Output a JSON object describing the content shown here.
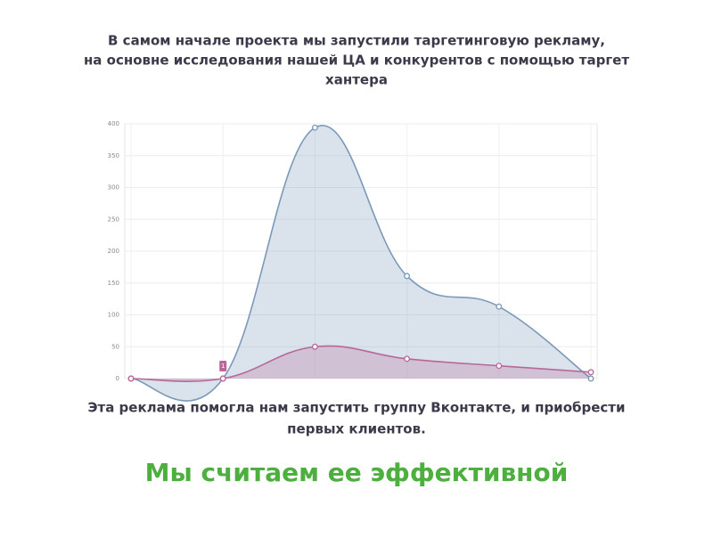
{
  "heading_lines": [
    "В самом начале проекта мы запустили таргетинговую рекламу,",
    "на основне исследования нашей ЦА и конкурентов с помощью таргет",
    "хантера"
  ],
  "chart_data": {
    "type": "area",
    "categories": [
      null,
      null,
      null,
      null,
      null,
      null
    ],
    "series": [
      {
        "color": "#7b99b9",
        "values": [
          0,
          0,
          394,
          161,
          113,
          0
        ]
      },
      {
        "color": "#b8679a",
        "values": [
          0,
          0,
          50,
          31,
          20,
          10
        ]
      }
    ],
    "ylim": [
      0,
      400
    ],
    "yticks": [
      0,
      50,
      100,
      150,
      200,
      250,
      300,
      350,
      400
    ],
    "grid": true,
    "annotation": "1"
  },
  "caption_lines": [
    "Эта реклама помогла нам запустить группу Вконтакте, и приобрести",
    "первых клиентов."
  ],
  "conclusion": "Мы считаем ее эффективной"
}
